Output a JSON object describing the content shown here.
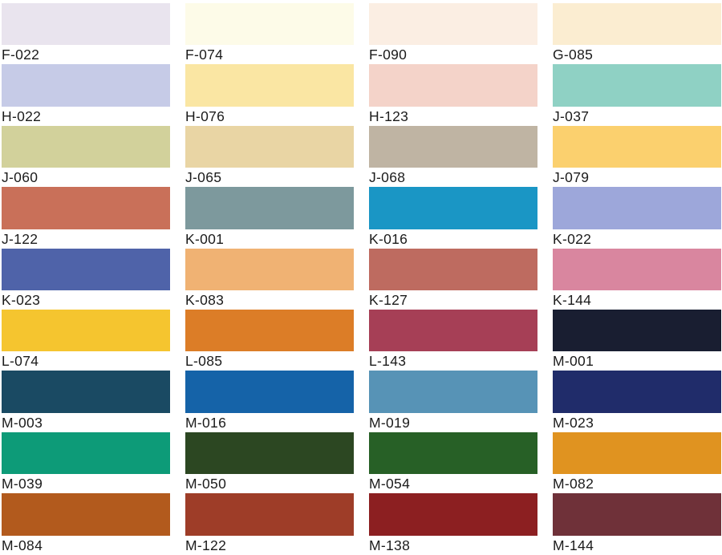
{
  "palette": {
    "title": "color-swatch-chart",
    "background": "#FFFFFF",
    "label_text_color": "#1B1B1B",
    "columns": 4,
    "rows": 9
  },
  "swatches": [
    {
      "code": "F-022",
      "color": "#E9E4EE"
    },
    {
      "code": "F-074",
      "color": "#FDFBE8"
    },
    {
      "code": "F-090",
      "color": "#FBEEE3"
    },
    {
      "code": "G-085",
      "color": "#FBEDD1"
    },
    {
      "code": "H-022",
      "color": "#C6CBE7"
    },
    {
      "code": "H-076",
      "color": "#FAE6A3"
    },
    {
      "code": "H-123",
      "color": "#F4D3C9"
    },
    {
      "code": "J-037",
      "color": "#8FD1C4"
    },
    {
      "code": "J-060",
      "color": "#D2D19B"
    },
    {
      "code": "J-065",
      "color": "#E9D5A4"
    },
    {
      "code": "J-068",
      "color": "#BFB4A3"
    },
    {
      "code": "J-079",
      "color": "#FBD06E"
    },
    {
      "code": "J-122",
      "color": "#C97059"
    },
    {
      "code": "K-001",
      "color": "#7D999D"
    },
    {
      "code": "K-016",
      "color": "#1A96C5"
    },
    {
      "code": "K-022",
      "color": "#9DA7DA"
    },
    {
      "code": "K-023",
      "color": "#4F63A9"
    },
    {
      "code": "K-083",
      "color": "#F0B273"
    },
    {
      "code": "K-127",
      "color": "#BE6B60"
    },
    {
      "code": "K-144",
      "color": "#D9869F"
    },
    {
      "code": "L-074",
      "color": "#F5C52F"
    },
    {
      "code": "L-085",
      "color": "#DC7D27"
    },
    {
      "code": "L-143",
      "color": "#A63F56"
    },
    {
      "code": "M-001",
      "color": "#191E31"
    },
    {
      "code": "M-003",
      "color": "#1A4A63"
    },
    {
      "code": "M-016",
      "color": "#1563A8"
    },
    {
      "code": "M-019",
      "color": "#5793B6"
    },
    {
      "code": "M-023",
      "color": "#202C6A"
    },
    {
      "code": "M-039",
      "color": "#0D9B78"
    },
    {
      "code": "M-050",
      "color": "#2C4722"
    },
    {
      "code": "M-054",
      "color": "#276026"
    },
    {
      "code": "M-082",
      "color": "#E09320"
    },
    {
      "code": "M-084",
      "color": "#B25A1D"
    },
    {
      "code": "M-122",
      "color": "#9E3D28"
    },
    {
      "code": "M-138",
      "color": "#8C1F21"
    },
    {
      "code": "M-144",
      "color": "#6F3139"
    }
  ]
}
